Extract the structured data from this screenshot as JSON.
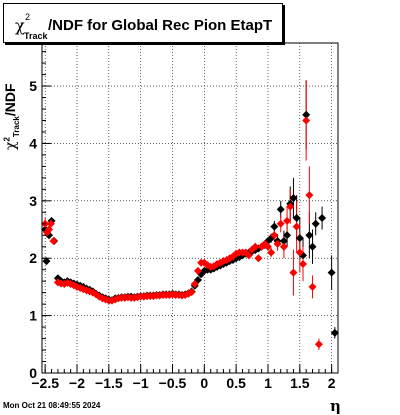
{
  "title": {
    "chi_symbol": "χ",
    "sup": "2",
    "sub": "Track",
    "text": "/NDF for Global Rec Pion EtapT"
  },
  "ylabel": {
    "text": "/NDF",
    "chi_symbol": "χ",
    "sup": "2",
    "sub": "Track"
  },
  "xlabel": "η",
  "datestamp": "Mon Oct 21 08:49:55 2024",
  "colors": {
    "series_black": "#000000",
    "series_red": "#ff0000",
    "grid": "#000000"
  },
  "chart_data": {
    "type": "scatter",
    "xlim": [
      -2.55,
      2.1
    ],
    "ylim": [
      0,
      5.75
    ],
    "xticks": [
      -2.5,
      -2,
      -1.5,
      -1,
      -0.5,
      0,
      0.5,
      1,
      1.5,
      2
    ],
    "xtick_labels": [
      "−2.5",
      "−2",
      "−1.5",
      "−1",
      "−0.5",
      "0",
      "0.5",
      "1",
      "1.5",
      "2"
    ],
    "yticks": [
      0,
      1,
      2,
      3,
      4,
      5
    ],
    "ytick_labels": [
      "0",
      "1",
      "2",
      "3",
      "4",
      "5"
    ],
    "grid": true,
    "series": [
      {
        "color": "black",
        "points": [
          [
            -2.5,
            2.5,
            0.1
          ],
          [
            -2.48,
            1.95,
            0
          ],
          [
            -2.44,
            2.4,
            0.05
          ],
          [
            -2.4,
            2.65,
            0.05
          ],
          [
            -2.36,
            2.3,
            0.05
          ],
          [
            -2.3,
            1.65,
            0.03
          ],
          [
            -2.25,
            1.6,
            0.02
          ],
          [
            -2.2,
            1.58,
            0.02
          ],
          [
            -2.15,
            1.6,
            0.02
          ],
          [
            -2.1,
            1.58,
            0.02
          ],
          [
            -2.05,
            1.56,
            0.02
          ],
          [
            -2.0,
            1.54,
            0.02
          ],
          [
            -1.95,
            1.52,
            0.02
          ],
          [
            -1.9,
            1.5,
            0.02
          ],
          [
            -1.85,
            1.47,
            0.02
          ],
          [
            -1.8,
            1.45,
            0.02
          ],
          [
            -1.75,
            1.42,
            0.02
          ],
          [
            -1.7,
            1.38,
            0.02
          ],
          [
            -1.65,
            1.35,
            0.02
          ],
          [
            -1.6,
            1.32,
            0.02
          ],
          [
            -1.55,
            1.3,
            0.02
          ],
          [
            -1.5,
            1.28,
            0.02
          ],
          [
            -1.45,
            1.27,
            0.02
          ],
          [
            -1.4,
            1.3,
            0.02
          ],
          [
            -1.35,
            1.31,
            0.02
          ],
          [
            -1.3,
            1.32,
            0.02
          ],
          [
            -1.25,
            1.32,
            0.02
          ],
          [
            -1.2,
            1.33,
            0.02
          ],
          [
            -1.15,
            1.33,
            0.02
          ],
          [
            -1.1,
            1.32,
            0.02
          ],
          [
            -1.05,
            1.33,
            0.02
          ],
          [
            -1.0,
            1.34,
            0.02
          ],
          [
            -0.95,
            1.34,
            0.02
          ],
          [
            -0.9,
            1.35,
            0.02
          ],
          [
            -0.85,
            1.35,
            0.02
          ],
          [
            -0.8,
            1.35,
            0.02
          ],
          [
            -0.75,
            1.36,
            0.02
          ],
          [
            -0.7,
            1.36,
            0.02
          ],
          [
            -0.65,
            1.37,
            0.02
          ],
          [
            -0.6,
            1.37,
            0.02
          ],
          [
            -0.55,
            1.37,
            0.02
          ],
          [
            -0.5,
            1.38,
            0.02
          ],
          [
            -0.45,
            1.37,
            0.02
          ],
          [
            -0.4,
            1.37,
            0.02
          ],
          [
            -0.35,
            1.36,
            0.02
          ],
          [
            -0.3,
            1.37,
            0.02
          ],
          [
            -0.25,
            1.39,
            0.02
          ],
          [
            -0.2,
            1.42,
            0.02
          ],
          [
            -0.15,
            1.52,
            0.02
          ],
          [
            -0.1,
            1.62,
            0.02
          ],
          [
            -0.05,
            1.72,
            0.02
          ],
          [
            0.0,
            1.78,
            0.02
          ],
          [
            0.05,
            1.8,
            0.02
          ],
          [
            0.1,
            1.8,
            0.02
          ],
          [
            0.15,
            1.82,
            0.02
          ],
          [
            0.2,
            1.85,
            0.02
          ],
          [
            0.25,
            1.87,
            0.02
          ],
          [
            0.3,
            1.9,
            0.02
          ],
          [
            0.35,
            1.92,
            0.02
          ],
          [
            0.4,
            1.95,
            0.02
          ],
          [
            0.45,
            1.97,
            0.02
          ],
          [
            0.5,
            2.0,
            0.02
          ],
          [
            0.55,
            2.02,
            0.02
          ],
          [
            0.6,
            2.05,
            0.02
          ],
          [
            0.65,
            2.08,
            0.02
          ],
          [
            0.7,
            2.1,
            0.03
          ],
          [
            0.75,
            2.12,
            0.03
          ],
          [
            0.8,
            2.14,
            0.03
          ],
          [
            0.85,
            2.17,
            0.03
          ],
          [
            0.9,
            2.2,
            0.04
          ],
          [
            0.95,
            2.23,
            0.05
          ],
          [
            1.0,
            2.3,
            0.06
          ],
          [
            1.05,
            2.35,
            0.08
          ],
          [
            1.1,
            2.55,
            0.1
          ],
          [
            1.15,
            2.3,
            0.12
          ],
          [
            1.2,
            2.85,
            0.15
          ],
          [
            1.25,
            2.3,
            0.18
          ],
          [
            1.3,
            2.4,
            0.2
          ],
          [
            1.35,
            2.95,
            0.3
          ],
          [
            1.4,
            3.05,
            0.35
          ],
          [
            1.45,
            2.7,
            0.4
          ],
          [
            1.5,
            2.35,
            0.35
          ],
          [
            1.55,
            2.05,
            0.3
          ],
          [
            1.6,
            4.5,
            0.6
          ],
          [
            1.65,
            2.4,
            0.4
          ],
          [
            1.7,
            2.2,
            0.3
          ],
          [
            1.75,
            2.6,
            0.2
          ],
          [
            1.85,
            2.7,
            0.2
          ],
          [
            2.0,
            1.75,
            0.3
          ],
          [
            2.05,
            0.7,
            0.1
          ]
        ]
      },
      {
        "color": "red",
        "points": [
          [
            -2.5,
            2.6,
            0.1
          ],
          [
            -2.47,
            2.45,
            0.05
          ],
          [
            -2.44,
            2.5,
            0.05
          ],
          [
            -2.41,
            2.6,
            0.05
          ],
          [
            -2.37,
            2.3,
            0.05
          ],
          [
            -2.3,
            1.58,
            0.03
          ],
          [
            -2.25,
            1.56,
            0.02
          ],
          [
            -2.2,
            1.55,
            0.02
          ],
          [
            -2.15,
            1.57,
            0.02
          ],
          [
            -2.1,
            1.55,
            0.02
          ],
          [
            -2.05,
            1.53,
            0.02
          ],
          [
            -2.0,
            1.5,
            0.02
          ],
          [
            -1.95,
            1.48,
            0.02
          ],
          [
            -1.9,
            1.46,
            0.02
          ],
          [
            -1.85,
            1.44,
            0.02
          ],
          [
            -1.8,
            1.42,
            0.02
          ],
          [
            -1.75,
            1.4,
            0.02
          ],
          [
            -1.7,
            1.37,
            0.02
          ],
          [
            -1.65,
            1.33,
            0.02
          ],
          [
            -1.6,
            1.3,
            0.02
          ],
          [
            -1.55,
            1.28,
            0.02
          ],
          [
            -1.5,
            1.26,
            0.02
          ],
          [
            -1.45,
            1.26,
            0.02
          ],
          [
            -1.4,
            1.28,
            0.02
          ],
          [
            -1.35,
            1.3,
            0.02
          ],
          [
            -1.3,
            1.31,
            0.02
          ],
          [
            -1.25,
            1.31,
            0.02
          ],
          [
            -1.2,
            1.32,
            0.02
          ],
          [
            -1.15,
            1.31,
            0.02
          ],
          [
            -1.1,
            1.31,
            0.02
          ],
          [
            -1.05,
            1.32,
            0.02
          ],
          [
            -1.0,
            1.33,
            0.02
          ],
          [
            -0.95,
            1.33,
            0.02
          ],
          [
            -0.9,
            1.34,
            0.02
          ],
          [
            -0.85,
            1.34,
            0.02
          ],
          [
            -0.8,
            1.34,
            0.02
          ],
          [
            -0.75,
            1.35,
            0.02
          ],
          [
            -0.7,
            1.35,
            0.02
          ],
          [
            -0.65,
            1.36,
            0.02
          ],
          [
            -0.6,
            1.36,
            0.02
          ],
          [
            -0.55,
            1.36,
            0.02
          ],
          [
            -0.5,
            1.37,
            0.02
          ],
          [
            -0.45,
            1.36,
            0.02
          ],
          [
            -0.4,
            1.36,
            0.02
          ],
          [
            -0.35,
            1.35,
            0.02
          ],
          [
            -0.3,
            1.36,
            0.02
          ],
          [
            -0.25,
            1.38,
            0.02
          ],
          [
            -0.2,
            1.41,
            0.02
          ],
          [
            -0.15,
            1.55,
            0.02
          ],
          [
            -0.1,
            1.78,
            0.02
          ],
          [
            -0.05,
            1.92,
            0.02
          ],
          [
            0.0,
            1.92,
            0.02
          ],
          [
            0.05,
            1.88,
            0.02
          ],
          [
            0.1,
            1.85,
            0.02
          ],
          [
            0.15,
            1.86,
            0.02
          ],
          [
            0.2,
            1.9,
            0.02
          ],
          [
            0.25,
            1.92,
            0.02
          ],
          [
            0.3,
            1.95,
            0.02
          ],
          [
            0.35,
            1.97,
            0.02
          ],
          [
            0.4,
            2.0,
            0.02
          ],
          [
            0.45,
            2.03,
            0.02
          ],
          [
            0.5,
            2.08,
            0.02
          ],
          [
            0.55,
            2.1,
            0.02
          ],
          [
            0.6,
            2.1,
            0.02
          ],
          [
            0.65,
            2.1,
            0.03
          ],
          [
            0.7,
            2.05,
            0.03
          ],
          [
            0.75,
            2.15,
            0.03
          ],
          [
            0.8,
            2.2,
            0.03
          ],
          [
            0.85,
            2.0,
            0.04
          ],
          [
            0.9,
            2.2,
            0.04
          ],
          [
            0.95,
            2.25,
            0.05
          ],
          [
            1.0,
            2.2,
            0.06
          ],
          [
            1.05,
            2.1,
            0.08
          ],
          [
            1.1,
            2.4,
            0.1
          ],
          [
            1.15,
            2.25,
            0.12
          ],
          [
            1.2,
            2.6,
            0.15
          ],
          [
            1.25,
            2.2,
            0.2
          ],
          [
            1.3,
            2.65,
            0.25
          ],
          [
            1.35,
            2.9,
            0.3
          ],
          [
            1.4,
            1.75,
            0.4
          ],
          [
            1.45,
            2.55,
            0.45
          ],
          [
            1.5,
            2.1,
            0.35
          ],
          [
            1.55,
            1.9,
            0.3
          ],
          [
            1.6,
            4.4,
            0.7
          ],
          [
            1.65,
            3.1,
            0.5
          ],
          [
            1.7,
            1.5,
            0.2
          ],
          [
            1.8,
            0.5,
            0.1
          ]
        ]
      }
    ]
  }
}
